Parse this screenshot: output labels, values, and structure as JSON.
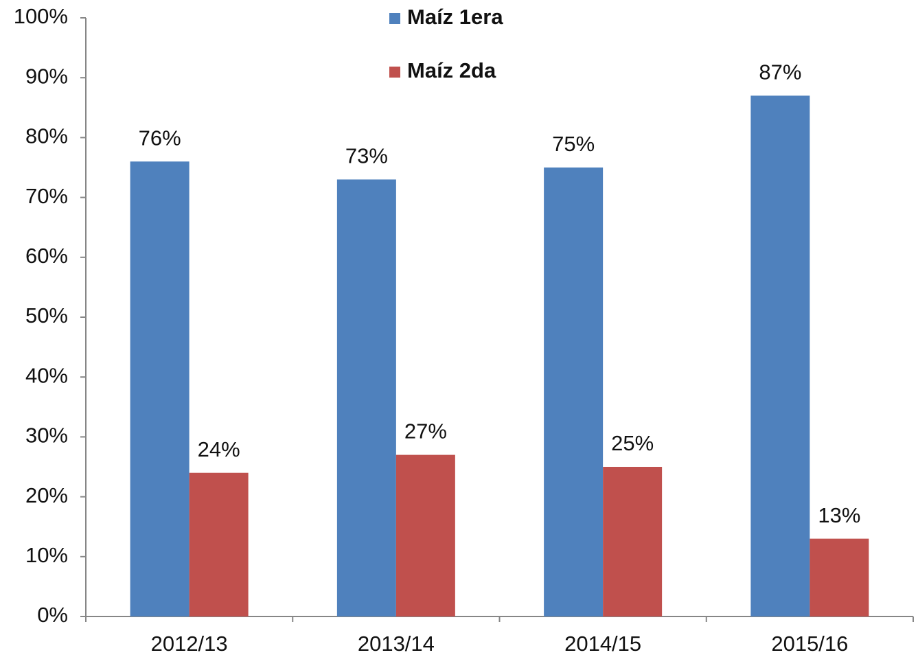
{
  "chart_data": {
    "type": "bar",
    "categories": [
      "2012/13",
      "2013/14",
      "2014/15",
      "2015/16"
    ],
    "series": [
      {
        "name": "Maíz 1era",
        "color": "#4f81bd",
        "values": [
          76,
          73,
          75,
          87
        ],
        "value_labels": [
          "76%",
          "73%",
          "75%",
          "87%"
        ]
      },
      {
        "name": "Maíz 2da",
        "color": "#c0504d",
        "values": [
          24,
          27,
          25,
          13
        ],
        "value_labels": [
          "24%",
          "27%",
          "25%",
          "13%"
        ]
      }
    ],
    "ylim": [
      0,
      100
    ],
    "yticks": [
      {
        "value": 0,
        "label": "0%"
      },
      {
        "value": 10,
        "label": "10%"
      },
      {
        "value": 20,
        "label": "20%"
      },
      {
        "value": 30,
        "label": "30%"
      },
      {
        "value": 40,
        "label": "40%"
      },
      {
        "value": 50,
        "label": "50%"
      },
      {
        "value": 60,
        "label": "60%"
      },
      {
        "value": 70,
        "label": "70%"
      },
      {
        "value": 80,
        "label": "80%"
      },
      {
        "value": 90,
        "label": "90%"
      },
      {
        "value": 100,
        "label": "100%"
      }
    ],
    "grid": false,
    "legend": "top"
  }
}
